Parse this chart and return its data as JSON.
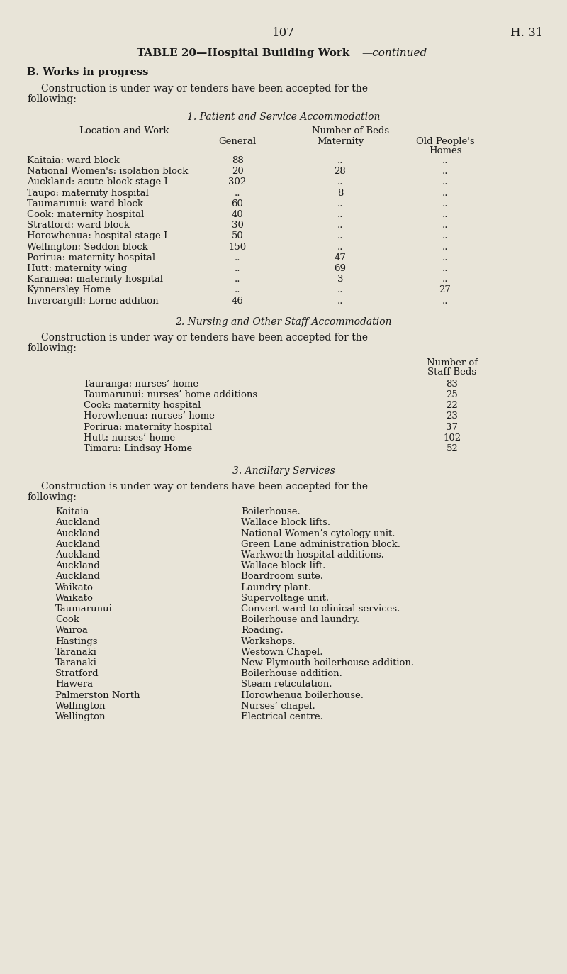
{
  "bg_color": "#e8e4d8",
  "text_color": "#1a1a1a",
  "page_num": "107",
  "page_ref": "H. 31",
  "table_title_bold": "TABLE 20—Hospital Building Work",
  "table_title_italic": "—continued",
  "section_b": "B. Works in progress",
  "section1_title": "1. Patient and Service Accommodation",
  "col_header_loc": "Location and Work",
  "col_header_beds": "Number of Beds",
  "col_general": "General",
  "col_maternity": "Maternity",
  "col_old1": "Old People's",
  "col_old2": "Homes",
  "patient_rows": [
    [
      "Kaitaia: ward block",
      "88",
      "",
      ""
    ],
    [
      "National Women's: isolation block",
      "20",
      "28",
      ""
    ],
    [
      "Auckland: acute block stage I",
      "302",
      "",
      ""
    ],
    [
      "Taupo: maternity hospital",
      "",
      "8",
      ""
    ],
    [
      "Taumarunui: ward block",
      "60",
      "",
      ""
    ],
    [
      "Cook: maternity hospital",
      "40",
      "",
      ""
    ],
    [
      "Stratford: ward block",
      "30",
      "",
      ""
    ],
    [
      "Horowhenua: hospital stage I",
      "50",
      "",
      ""
    ],
    [
      "Wellington: Seddon block",
      "150",
      "",
      ""
    ],
    [
      "Porirua: maternity hospital",
      "",
      "47",
      ""
    ],
    [
      "Hutt: maternity wing",
      "",
      "69",
      ""
    ],
    [
      "Karamea: maternity hospital",
      "",
      "3",
      ""
    ],
    [
      "Kynnersley Home",
      "",
      "",
      "27"
    ],
    [
      "Invercargill: Lorne addition",
      "46",
      "",
      ""
    ]
  ],
  "section2_title": "2. Nursing and Other Staff Accommodation",
  "staff_rows": [
    [
      "Tauranga: nurses’ home",
      "83"
    ],
    [
      "Taumarunui: nurses’ home additions",
      "25"
    ],
    [
      "Cook: maternity hospital",
      "22"
    ],
    [
      "Horowhenua: nurses’ home",
      "23"
    ],
    [
      "Porirua: maternity hospital",
      "37"
    ],
    [
      "Hutt: nurses’ home",
      "102"
    ],
    [
      "Timaru: Lindsay Home",
      "52"
    ]
  ],
  "section3_title": "3. Ancillary Services",
  "ancillary_rows": [
    [
      "Kaitaia",
      "Boilerhouse."
    ],
    [
      "Auckland",
      "Wallace block lifts."
    ],
    [
      "Auckland",
      "National Women’s cytology unit."
    ],
    [
      "Auckland",
      "Green Lane administration block."
    ],
    [
      "Auckland",
      "Warkworth hospital additions."
    ],
    [
      "Auckland",
      "Wallace block lift."
    ],
    [
      "Auckland",
      "Boardroom suite."
    ],
    [
      "Waikato",
      "Laundry plant."
    ],
    [
      "Waikato",
      "Supervoltage unit."
    ],
    [
      "Taumarunui",
      "Convert ward to clinical services."
    ],
    [
      "Cook",
      "Boilerhouse and laundry."
    ],
    [
      "Wairoa",
      "Roading."
    ],
    [
      "Hastings",
      "Workshops."
    ],
    [
      "Taranaki",
      "Westown Chapel."
    ],
    [
      "Taranaki",
      "New Plymouth boilerhouse addition."
    ],
    [
      "Stratford",
      "Boilerhouse addition."
    ],
    [
      "Hawera",
      "Steam reticulation."
    ],
    [
      "Palmerston North",
      "Horowhenua boilerhouse."
    ],
    [
      "Wellington",
      "Nurses’ chapel."
    ],
    [
      "Wellington",
      "Electrical centre."
    ]
  ]
}
